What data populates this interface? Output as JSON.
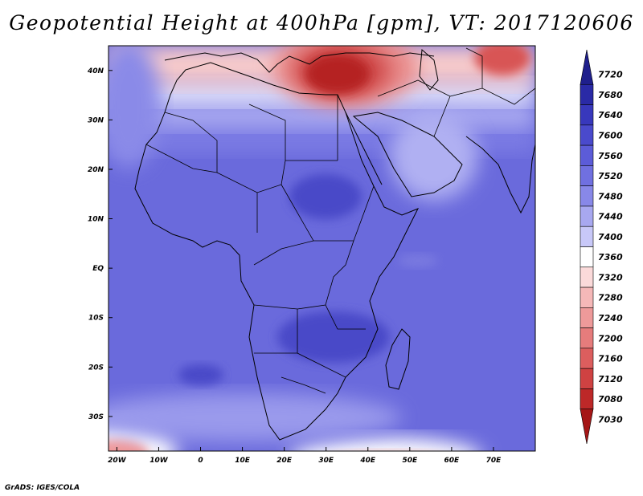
{
  "title": "Geopotential Height at 400hPa [gpm], VT: 2017120606",
  "footer": "GrADS: IGES/COLA",
  "map": {
    "lon_range": [
      -22,
      80
    ],
    "lat_range": [
      -37,
      45
    ],
    "lon_ticks": [
      {
        "value": -20,
        "label": "20W"
      },
      {
        "value": -10,
        "label": "10W"
      },
      {
        "value": 0,
        "label": "0"
      },
      {
        "value": 10,
        "label": "10E"
      },
      {
        "value": 20,
        "label": "20E"
      },
      {
        "value": 30,
        "label": "30E"
      },
      {
        "value": 40,
        "label": "40E"
      },
      {
        "value": 50,
        "label": "50E"
      },
      {
        "value": 60,
        "label": "60E"
      },
      {
        "value": 70,
        "label": "70E"
      }
    ],
    "lat_ticks": [
      {
        "value": 40,
        "label": "40N"
      },
      {
        "value": 30,
        "label": "30N"
      },
      {
        "value": 20,
        "label": "20N"
      },
      {
        "value": 10,
        "label": "10N"
      },
      {
        "value": 0,
        "label": "EQ"
      },
      {
        "value": -10,
        "label": "10S"
      },
      {
        "value": -20,
        "label": "20S"
      },
      {
        "value": -30,
        "label": "30S"
      }
    ]
  },
  "colorbar": {
    "levels": [
      "7720",
      "7680",
      "7640",
      "7600",
      "7560",
      "7520",
      "7480",
      "7440",
      "7400",
      "7360",
      "7320",
      "7280",
      "7240",
      "7200",
      "7160",
      "7120",
      "7080",
      "7030"
    ],
    "colors": [
      "#1f1f8c",
      "#2a2aa6",
      "#3838bc",
      "#4a4acc",
      "#5c5cd8",
      "#7070e0",
      "#8888e8",
      "#a8a8f0",
      "#c8c8f8",
      "#ffffff",
      "#fbdada",
      "#f5b8b8",
      "#ee9a9a",
      "#e67c7c",
      "#dc5e5e",
      "#cf4242",
      "#bd2828",
      "#a51616"
    ]
  }
}
